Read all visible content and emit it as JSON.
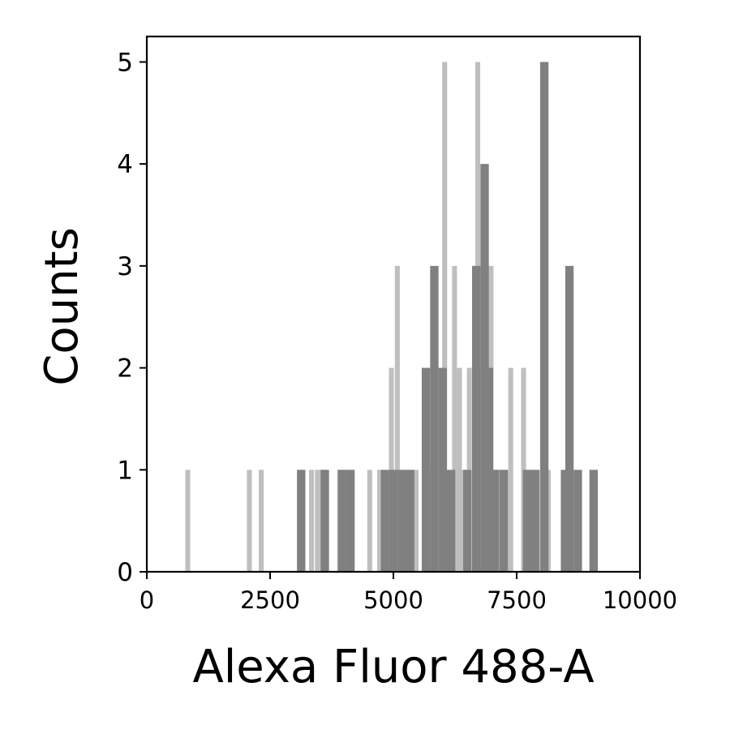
{
  "chart_data": {
    "type": "bar",
    "title": "",
    "xlabel": "Alexa Fluor 488-A",
    "ylabel": "Counts",
    "xlim": [
      0,
      10000
    ],
    "ylim": [
      0,
      5.25
    ],
    "xticks": [
      "0",
      "2500",
      "5000",
      "7500",
      "10000"
    ],
    "yticks": [
      "0",
      "1",
      "2",
      "3",
      "4",
      "5"
    ],
    "grid": false,
    "legend": "none",
    "colors": {
      "dark_series": "#808080",
      "light_series": "#bfbfbf",
      "axes": "#000000"
    },
    "series": [
      {
        "bin_width": 100,
        "color_role": "light_series",
        "bins": [
          {
            "x": 830,
            "count": 1
          },
          {
            "x": 2080,
            "count": 1
          },
          {
            "x": 2320,
            "count": 1
          },
          {
            "x": 3130,
            "count": 1
          },
          {
            "x": 3340,
            "count": 1
          },
          {
            "x": 3460,
            "count": 1
          },
          {
            "x": 3560,
            "count": 1
          },
          {
            "x": 3910,
            "count": 1
          },
          {
            "x": 4520,
            "count": 1
          },
          {
            "x": 4720,
            "count": 1
          },
          {
            "x": 4960,
            "count": 2
          },
          {
            "x": 5080,
            "count": 3
          },
          {
            "x": 5460,
            "count": 1
          },
          {
            "x": 5640,
            "count": 1
          },
          {
            "x": 5760,
            "count": 1
          },
          {
            "x": 6040,
            "count": 5
          },
          {
            "x": 6240,
            "count": 3
          },
          {
            "x": 6340,
            "count": 2
          },
          {
            "x": 6420,
            "count": 1
          },
          {
            "x": 6540,
            "count": 2
          },
          {
            "x": 6710,
            "count": 5
          },
          {
            "x": 6780,
            "count": 2
          },
          {
            "x": 6980,
            "count": 3
          },
          {
            "x": 7160,
            "count": 1
          },
          {
            "x": 7380,
            "count": 2
          },
          {
            "x": 7640,
            "count": 2
          },
          {
            "x": 7840,
            "count": 1
          },
          {
            "x": 8140,
            "count": 1
          }
        ]
      },
      {
        "bin_width": 170,
        "color_role": "dark_series",
        "bins": [
          {
            "x": 3130,
            "count": 1
          },
          {
            "x": 3610,
            "count": 1
          },
          {
            "x": 3960,
            "count": 1
          },
          {
            "x": 4130,
            "count": 1
          },
          {
            "x": 4830,
            "count": 1
          },
          {
            "x": 5000,
            "count": 1
          },
          {
            "x": 5170,
            "count": 1
          },
          {
            "x": 5340,
            "count": 1
          },
          {
            "x": 5660,
            "count": 2
          },
          {
            "x": 5830,
            "count": 3
          },
          {
            "x": 6000,
            "count": 2
          },
          {
            "x": 6170,
            "count": 1
          },
          {
            "x": 6500,
            "count": 1
          },
          {
            "x": 6680,
            "count": 3
          },
          {
            "x": 6850,
            "count": 4
          },
          {
            "x": 6940,
            "count": 2
          },
          {
            "x": 7060,
            "count": 1
          },
          {
            "x": 7240,
            "count": 1
          },
          {
            "x": 7710,
            "count": 1
          },
          {
            "x": 7880,
            "count": 1
          },
          {
            "x": 8060,
            "count": 5
          },
          {
            "x": 8480,
            "count": 1
          },
          {
            "x": 8570,
            "count": 3
          },
          {
            "x": 8740,
            "count": 1
          },
          {
            "x": 9060,
            "count": 1
          }
        ]
      }
    ]
  }
}
